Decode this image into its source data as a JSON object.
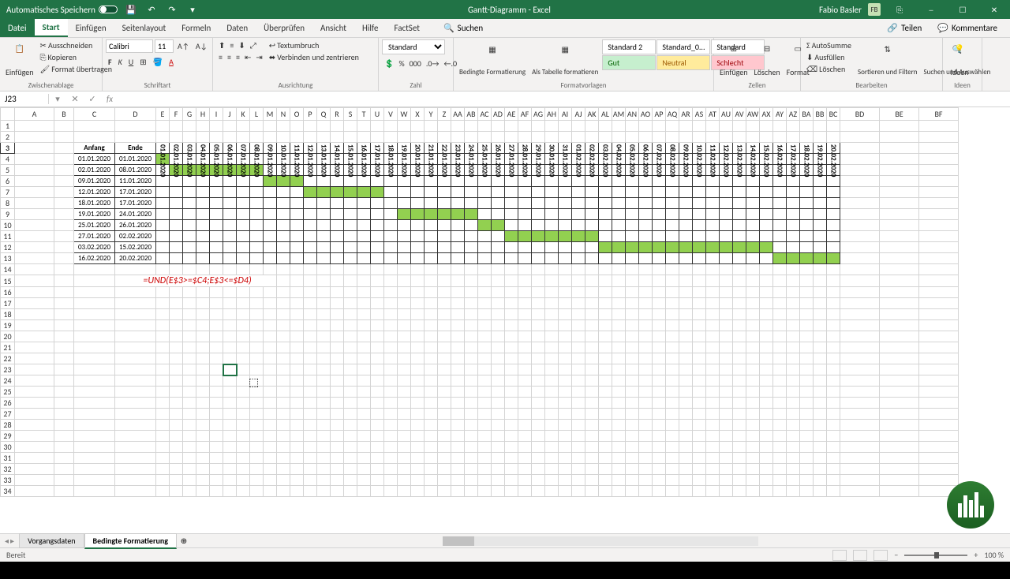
{
  "title": {
    "autosave": "Automatisches Speichern",
    "doc": "Gantt-Diagramm",
    "app": "Excel",
    "user": "Fabio Basler",
    "badge": "FB"
  },
  "tabs": {
    "file": "Datei",
    "start": "Start",
    "insert": "Einfügen",
    "layout": "Seitenlayout",
    "formulas": "Formeln",
    "data": "Daten",
    "review": "Überprüfen",
    "view": "Ansicht",
    "help": "Hilfe",
    "factset": "FactSet",
    "search": "Suchen",
    "share": "Teilen",
    "comments": "Kommentare"
  },
  "ribbon": {
    "clipboard": {
      "label": "Zwischenablage",
      "paste": "Einfügen",
      "cut": "Ausschneiden",
      "copy": "Kopieren",
      "format": "Format übertragen"
    },
    "font": {
      "label": "Schriftart",
      "name": "Calibri",
      "size": "11"
    },
    "align": {
      "label": "Ausrichtung",
      "wrap": "Textumbruch",
      "merge": "Verbinden und zentrieren"
    },
    "number": {
      "label": "Zahl",
      "format": "Standard"
    },
    "styles": {
      "label": "Formatvorlagen",
      "cond": "Bedingte Formatierung",
      "table": "Als Tabelle formatieren",
      "s1": "Standard 2",
      "s2": "Standard_0...",
      "s3": "Standard",
      "s4": "Gut",
      "s5": "Neutral",
      "s6": "Schlecht"
    },
    "cells": {
      "label": "Zellen",
      "insert": "Einfügen",
      "delete": "Löschen",
      "format": "Format"
    },
    "editing": {
      "label": "Bearbeiten",
      "sum": "AutoSumme",
      "fill": "Ausfüllen",
      "clear": "Löschen",
      "sort": "Sortieren und Filtern",
      "find": "Suchen und Auswählen"
    },
    "ideas": {
      "label": "Ideen",
      "btn": "Ideen"
    }
  },
  "namebox": "J23",
  "colHdrs": [
    "A",
    "B",
    "C",
    "D",
    "E",
    "F",
    "G",
    "H",
    "I",
    "J",
    "K",
    "L",
    "M",
    "N",
    "O",
    "P",
    "Q",
    "R",
    "S",
    "T",
    "U",
    "V",
    "W",
    "X",
    "Y",
    "Z",
    "AA",
    "AB",
    "AC",
    "AD",
    "AE",
    "AF",
    "AG",
    "AH",
    "AI",
    "AJ",
    "AK",
    "AL",
    "AM",
    "AN",
    "AO",
    "AP",
    "AQ",
    "AR",
    "AS",
    "AT",
    "AU",
    "AV",
    "AW",
    "AX",
    "AY",
    "AZ",
    "BA",
    "BB",
    "BC",
    "BD",
    "BE",
    "BF"
  ],
  "gantt": {
    "h1": "Anfang",
    "h2": "Ende",
    "dates": [
      "01.01.2020",
      "02.01.2020",
      "03.01.2020",
      "04.01.2020",
      "05.01.2020",
      "06.01.2020",
      "07.01.2020",
      "08.01.2020",
      "09.01.2020",
      "10.01.2020",
      "11.01.2020",
      "12.01.2020",
      "13.01.2020",
      "14.01.2020",
      "15.01.2020",
      "16.01.2020",
      "17.01.2020",
      "18.01.2020",
      "19.01.2020",
      "20.01.2020",
      "21.01.2020",
      "22.01.2020",
      "23.01.2020",
      "24.01.2020",
      "25.01.2020",
      "26.01.2020",
      "27.01.2020",
      "28.01.2020",
      "29.01.2020",
      "30.01.2020",
      "31.01.2020",
      "01.02.2020",
      "02.02.2020",
      "03.02.2020",
      "04.02.2020",
      "05.02.2020",
      "06.02.2020",
      "07.02.2020",
      "08.02.2020",
      "09.02.2020",
      "10.02.2020",
      "11.02.2020",
      "12.02.2020",
      "13.02.2020",
      "14.02.2020",
      "15.02.2020",
      "16.02.2020",
      "17.02.2020",
      "18.02.2020",
      "19.02.2020",
      "20.02.2020"
    ],
    "rows": [
      {
        "s": "01.01.2020",
        "e": "01.01.2020",
        "from": 0,
        "to": 0
      },
      {
        "s": "02.01.2020",
        "e": "08.01.2020",
        "from": 1,
        "to": 7
      },
      {
        "s": "09.01.2020",
        "e": "11.01.2020",
        "from": 8,
        "to": 10
      },
      {
        "s": "12.01.2020",
        "e": "17.01.2020",
        "from": 11,
        "to": 16
      },
      {
        "s": "18.01.2020",
        "e": "17.01.2020",
        "from": 17,
        "to": 16
      },
      {
        "s": "19.01.2020",
        "e": "24.01.2020",
        "from": 18,
        "to": 23
      },
      {
        "s": "25.01.2020",
        "e": "26.01.2020",
        "from": 24,
        "to": 25
      },
      {
        "s": "27.01.2020",
        "e": "02.02.2020",
        "from": 26,
        "to": 32
      },
      {
        "s": "03.02.2020",
        "e": "15.02.2020",
        "from": 33,
        "to": 45
      },
      {
        "s": "16.02.2020",
        "e": "20.02.2020",
        "from": 46,
        "to": 50
      }
    ],
    "formula": "=UND(E$3>=$C4;E$3<=$D4)"
  },
  "sheets": {
    "s1": "Vorgangsdaten",
    "s2": "Bedingte Formatierung"
  },
  "status": {
    "ready": "Bereit",
    "zoom": "100 %"
  }
}
